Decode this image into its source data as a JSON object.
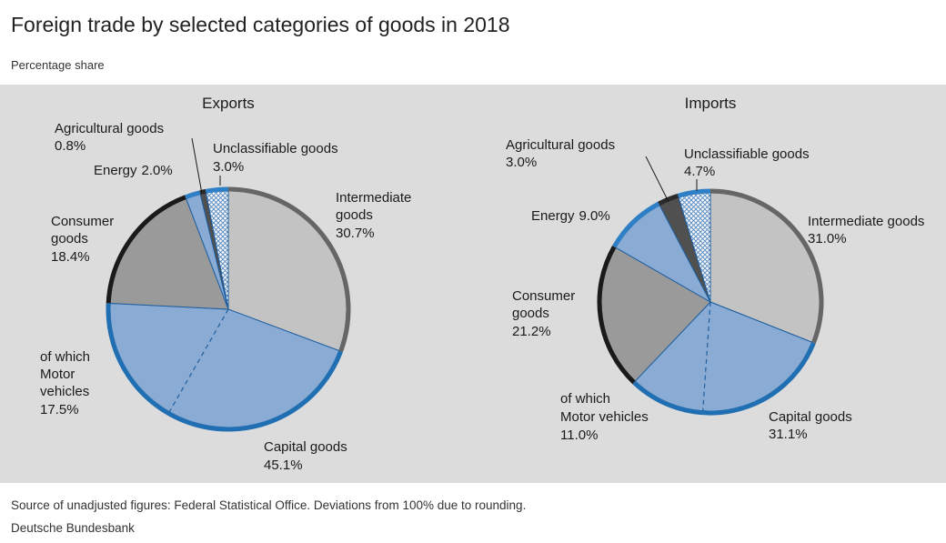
{
  "title": "Foreign trade by selected categories of goods in 2018",
  "subtitle": "Percentage share",
  "source": "Source of unadjusted figures: Federal Statistical Office. Deviations from 100% due to rounding.",
  "publisher": "Deutsche Bundesbank",
  "chart_data": [
    {
      "type": "pie",
      "title": "Exports",
      "unit": "%",
      "slices": [
        {
          "name": "Intermediate goods",
          "value": 30.7,
          "label": "30.7%",
          "color": "#c3c3c3",
          "rim": "#666666"
        },
        {
          "name": "Capital goods",
          "value": 45.1,
          "label": "45.1%",
          "color": "#8aabd4",
          "rim": "#1f6fb2"
        },
        {
          "name": "Consumer goods",
          "value": 18.4,
          "label": "18.4%",
          "color": "#9a9a9a",
          "rim": "#1a1a1a"
        },
        {
          "name": "Energy",
          "value": 2.0,
          "label": "2.0%",
          "color": "#8aabd4",
          "rim": "#2f7fc6"
        },
        {
          "name": "Agricultural goods",
          "value": 0.8,
          "label": "0.8%",
          "color": "#505050",
          "rim": "#2a2a2a"
        },
        {
          "name": "Unclassifiable goods",
          "value": 3.0,
          "label": "3.0%",
          "color": "hatch",
          "rim": "#2f7fc6"
        }
      ],
      "sub_share": {
        "of_which": "of which",
        "name": "Motor vehicles",
        "value": 17.5,
        "label": "17.5%"
      }
    },
    {
      "type": "pie",
      "title": "Imports",
      "unit": "%",
      "slices": [
        {
          "name": "Intermediate goods",
          "value": 31.0,
          "label": "31.0%",
          "color": "#c3c3c3",
          "rim": "#666666"
        },
        {
          "name": "Capital goods",
          "value": 31.1,
          "label": "31.1%",
          "color": "#8aabd4",
          "rim": "#1f6fb2"
        },
        {
          "name": "Consumer goods",
          "value": 21.2,
          "label": "21.2%",
          "color": "#9a9a9a",
          "rim": "#1a1a1a"
        },
        {
          "name": "Energy",
          "value": 9.0,
          "label": "9.0%",
          "color": "#8aabd4",
          "rim": "#2f7fc6"
        },
        {
          "name": "Agricultural goods",
          "value": 3.0,
          "label": "3.0%",
          "color": "#505050",
          "rim": "#2a2a2a"
        },
        {
          "name": "Unclassifiable goods",
          "value": 4.7,
          "label": "4.7%",
          "color": "hatch",
          "rim": "#2f7fc6"
        }
      ],
      "sub_share": {
        "of_which": "of which",
        "name": "Motor vehicles",
        "value": 11.0,
        "label": "11.0%"
      }
    }
  ],
  "text": {
    "exports": {
      "agri_name": "Agricultural goods",
      "agri_value": "0.8%",
      "energy_name": "Energy",
      "energy_value": "2.0%",
      "unclass_name": "Unclassifiable goods",
      "unclass_value": "3.0%",
      "inter_name_1": "Intermediate",
      "inter_name_2": "goods",
      "inter_value": "30.7%",
      "consumer_name_1": "Consumer",
      "consumer_name_2": "goods",
      "consumer_value": "18.4%",
      "motor_pre": "of which",
      "motor_name_1": "Motor",
      "motor_name_2": "vehicles",
      "motor_value": "17.5%",
      "capital_name": "Capital goods",
      "capital_value": "45.1%"
    },
    "imports": {
      "agri_name": "Agricultural goods",
      "agri_value": "3.0%",
      "energy_name": "Energy",
      "energy_value": "9.0%",
      "unclass_name": "Unclassifiable goods",
      "unclass_value": "4.7%",
      "inter_name": "Intermediate goods",
      "inter_value": "31.0%",
      "consumer_name_1": "Consumer",
      "consumer_name_2": "goods",
      "consumer_value": "21.2%",
      "motor_pre": "of which",
      "motor_name": "Motor vehicles",
      "motor_value": "11.0%",
      "capital_name": "Capital goods",
      "capital_value": "31.1%"
    }
  }
}
